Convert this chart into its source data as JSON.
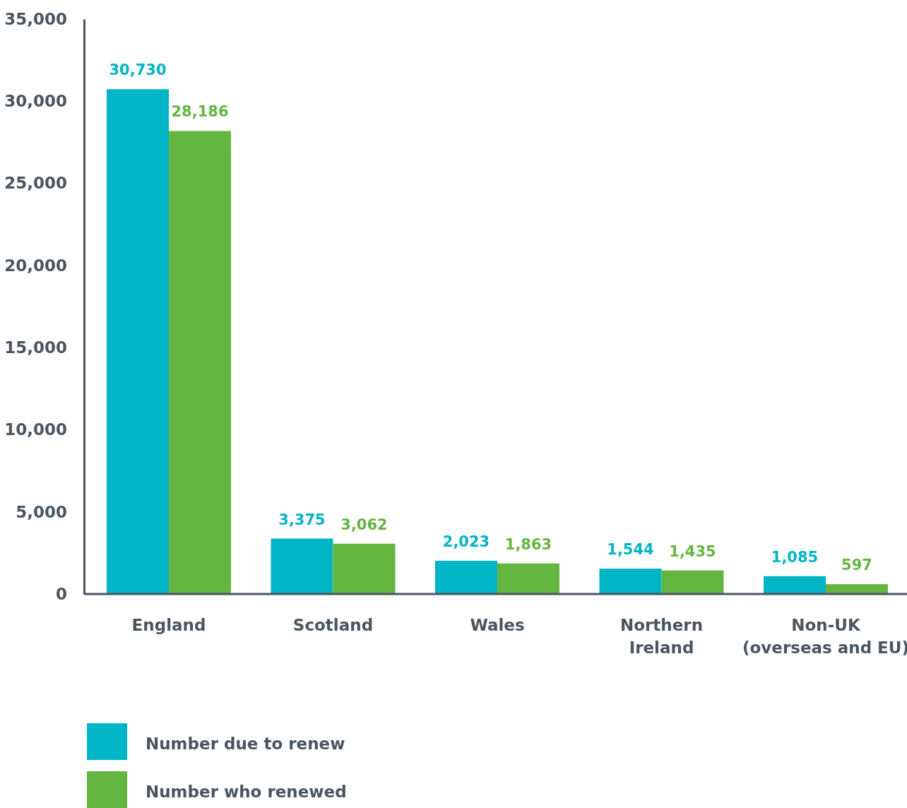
{
  "chart_data": {
    "type": "bar",
    "categories": [
      "England",
      "Scotland",
      "Wales",
      "Northern Ireland",
      "Non-UK (overseas and EU)"
    ],
    "series": [
      {
        "name": "Number due to renew",
        "color": "#00b5c6",
        "values": [
          30730,
          3375,
          2023,
          1544,
          1085
        ],
        "value_labels": [
          "30,730",
          "3,375",
          "2,023",
          "1,544",
          "1,085"
        ]
      },
      {
        "name": "Number who renewed",
        "color": "#65b641",
        "values": [
          28186,
          3062,
          1863,
          1435,
          597
        ],
        "value_labels": [
          "28,186",
          "3,062",
          "1,863",
          "1,435",
          "597"
        ]
      }
    ],
    "ylim": [
      0,
      35000
    ],
    "yticks": [
      {
        "value": 0,
        "label": "0"
      },
      {
        "value": 5000,
        "label": "5,000"
      },
      {
        "value": 10000,
        "label": "10,000"
      },
      {
        "value": 15000,
        "label": "15,000"
      },
      {
        "value": 20000,
        "label": "20,000"
      },
      {
        "value": 25000,
        "label": "25,000"
      },
      {
        "value": 30000,
        "label": "30,000"
      },
      {
        "value": 35000,
        "label": "35,000"
      }
    ],
    "grid": false,
    "legend": "bottom left"
  }
}
